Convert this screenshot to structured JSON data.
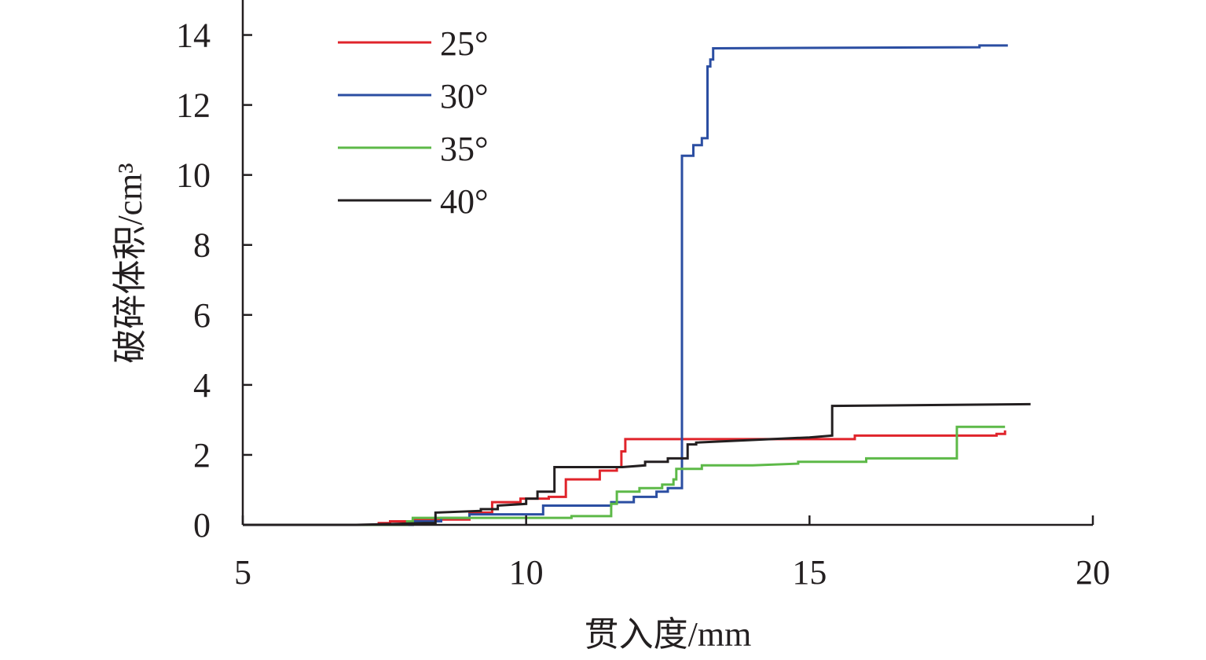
{
  "chart_data": {
    "type": "line",
    "xlabel": "贯入度/mm",
    "ylabel": "破碎体积/cm³",
    "xlim": [
      5,
      20
    ],
    "ylim": [
      0,
      15
    ],
    "xticks": [
      5,
      10,
      15,
      20
    ],
    "yticks": [
      0,
      2,
      4,
      6,
      8,
      10,
      12,
      14
    ],
    "grid": false,
    "legend": "top-left",
    "series": [
      {
        "name": "25°",
        "color": "#e0242b",
        "points": [
          [
            5.0,
            0
          ],
          [
            7.4,
            0
          ],
          [
            7.4,
            0.05
          ],
          [
            7.6,
            0.05
          ],
          [
            7.6,
            0.1
          ],
          [
            8.0,
            0.1
          ],
          [
            8.0,
            0.15
          ],
          [
            9.0,
            0.15
          ],
          [
            9.0,
            0.35
          ],
          [
            9.4,
            0.35
          ],
          [
            9.4,
            0.65
          ],
          [
            9.9,
            0.65
          ],
          [
            9.9,
            0.75
          ],
          [
            10.4,
            0.75
          ],
          [
            10.4,
            0.8
          ],
          [
            10.7,
            0.8
          ],
          [
            10.7,
            1.3
          ],
          [
            11.3,
            1.3
          ],
          [
            11.3,
            1.55
          ],
          [
            11.6,
            1.55
          ],
          [
            11.6,
            1.65
          ],
          [
            11.68,
            1.65
          ],
          [
            11.68,
            2.1
          ],
          [
            11.75,
            2.1
          ],
          [
            11.75,
            2.45
          ],
          [
            15.8,
            2.45
          ],
          [
            15.8,
            2.55
          ],
          [
            18.3,
            2.55
          ],
          [
            18.3,
            2.6
          ],
          [
            18.45,
            2.6
          ],
          [
            18.45,
            2.7
          ]
        ]
      },
      {
        "name": "30°",
        "color": "#2b4ea2",
        "points": [
          [
            5.0,
            0
          ],
          [
            8.0,
            0
          ],
          [
            8.0,
            0.1
          ],
          [
            8.5,
            0.1
          ],
          [
            8.5,
            0.2
          ],
          [
            9.0,
            0.2
          ],
          [
            9.0,
            0.3
          ],
          [
            10.3,
            0.3
          ],
          [
            10.3,
            0.55
          ],
          [
            11.5,
            0.55
          ],
          [
            11.5,
            0.65
          ],
          [
            11.9,
            0.65
          ],
          [
            11.9,
            0.8
          ],
          [
            12.3,
            0.8
          ],
          [
            12.3,
            0.95
          ],
          [
            12.5,
            0.95
          ],
          [
            12.5,
            1.05
          ],
          [
            12.75,
            1.05
          ],
          [
            12.75,
            10.55
          ],
          [
            12.95,
            10.55
          ],
          [
            12.95,
            10.85
          ],
          [
            13.1,
            10.85
          ],
          [
            13.1,
            11.05
          ],
          [
            13.2,
            11.05
          ],
          [
            13.2,
            13.1
          ],
          [
            13.25,
            13.1
          ],
          [
            13.25,
            13.3
          ],
          [
            13.3,
            13.3
          ],
          [
            13.3,
            13.62
          ],
          [
            18.0,
            13.65
          ],
          [
            18.0,
            13.7
          ],
          [
            18.5,
            13.7
          ]
        ]
      },
      {
        "name": "35°",
        "color": "#5db948",
        "points": [
          [
            5.0,
            0
          ],
          [
            7.9,
            0
          ],
          [
            7.9,
            0.1
          ],
          [
            8.0,
            0.1
          ],
          [
            8.0,
            0.2
          ],
          [
            9.0,
            0.2
          ],
          [
            10.8,
            0.2
          ],
          [
            10.8,
            0.25
          ],
          [
            11.5,
            0.25
          ],
          [
            11.5,
            0.6
          ],
          [
            11.6,
            0.6
          ],
          [
            11.6,
            0.95
          ],
          [
            12.0,
            0.95
          ],
          [
            12.0,
            1.05
          ],
          [
            12.4,
            1.05
          ],
          [
            12.4,
            1.15
          ],
          [
            12.6,
            1.15
          ],
          [
            12.6,
            1.3
          ],
          [
            12.65,
            1.3
          ],
          [
            12.65,
            1.6
          ],
          [
            13.1,
            1.6
          ],
          [
            13.1,
            1.7
          ],
          [
            14.0,
            1.7
          ],
          [
            14.8,
            1.75
          ],
          [
            14.8,
            1.8
          ],
          [
            16.0,
            1.8
          ],
          [
            16.0,
            1.9
          ],
          [
            17.6,
            1.9
          ],
          [
            17.6,
            2.8
          ],
          [
            18.45,
            2.8
          ]
        ]
      },
      {
        "name": "40°",
        "color": "#231f20",
        "points": [
          [
            5.0,
            0
          ],
          [
            7.0,
            0
          ],
          [
            7.5,
            0.02
          ],
          [
            8.2,
            0.05
          ],
          [
            8.4,
            0.05
          ],
          [
            8.4,
            0.35
          ],
          [
            9.2,
            0.4
          ],
          [
            9.2,
            0.45
          ],
          [
            9.5,
            0.45
          ],
          [
            9.5,
            0.55
          ],
          [
            10.0,
            0.6
          ],
          [
            10.0,
            0.75
          ],
          [
            10.2,
            0.75
          ],
          [
            10.2,
            0.95
          ],
          [
            10.5,
            0.95
          ],
          [
            10.5,
            1.65
          ],
          [
            11.7,
            1.65
          ],
          [
            12.1,
            1.7
          ],
          [
            12.1,
            1.8
          ],
          [
            12.5,
            1.8
          ],
          [
            12.5,
            1.9
          ],
          [
            12.85,
            1.9
          ],
          [
            12.85,
            2.3
          ],
          [
            13.0,
            2.3
          ],
          [
            13.0,
            2.35
          ],
          [
            15.0,
            2.5
          ],
          [
            15.4,
            2.55
          ],
          [
            15.4,
            3.4
          ],
          [
            18.9,
            3.45
          ]
        ]
      }
    ]
  }
}
